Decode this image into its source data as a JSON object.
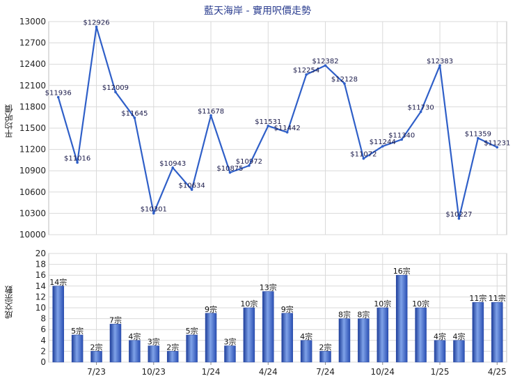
{
  "title": "藍天海岸 - 實用呎價走勢",
  "colors": {
    "line": "#2f5fc8",
    "bar": "#3a64c8",
    "grid": "#d9d9d9",
    "plot_bg": "#ffffff"
  },
  "chart_data": [
    {
      "type": "line",
      "ylabel": "平均呎價",
      "ylim": [
        10000,
        13000
      ],
      "y_ticks": [
        10000,
        10300,
        10600,
        10900,
        11200,
        11500,
        11800,
        12100,
        12400,
        12700,
        13000
      ],
      "x_tick_labels": [
        "7/23",
        "10/23",
        "1/24",
        "4/24",
        "7/24",
        "10/24",
        "1/25",
        "4/25"
      ],
      "x_tick_positions": [
        2.5,
        5.5,
        8.5,
        11.5,
        14.5,
        17.5,
        20.5,
        23.5
      ],
      "series": [
        {
          "values": [
            11936,
            11016,
            12926,
            12009,
            11645,
            10301,
            10943,
            10634,
            11678,
            10875,
            10972,
            11531,
            11442,
            12254,
            12382,
            12128,
            11072,
            11244,
            11340,
            11730,
            12383,
            10227,
            11359,
            11231
          ],
          "labels": [
            "$11936",
            "$11016",
            "$12926",
            "$12009",
            "$11645",
            "$10301",
            "$10943",
            "$10634",
            "$11678",
            "$10875",
            "$10972",
            "$11531",
            "$11442",
            "$12254",
            "$12382",
            "$12128",
            "$11072",
            "$11244",
            "$11340",
            "$11730",
            "$12383",
            "$10227",
            "$11359",
            "$11231"
          ]
        }
      ],
      "grid": true
    },
    {
      "type": "bar",
      "ylabel": "成交宗數",
      "ylim": [
        0,
        20
      ],
      "y_ticks": [
        0,
        2,
        4,
        6,
        8,
        10,
        12,
        14,
        16,
        18,
        20
      ],
      "x_tick_labels": [
        "7/23",
        "10/23",
        "1/24",
        "4/24",
        "7/24",
        "10/24",
        "1/25",
        "4/25"
      ],
      "x_tick_positions": [
        2.5,
        5.5,
        8.5,
        11.5,
        14.5,
        17.5,
        20.5,
        23.5
      ],
      "values": [
        14,
        5,
        2,
        7,
        4,
        3,
        2,
        5,
        9,
        3,
        10,
        13,
        9,
        4,
        2,
        8,
        8,
        10,
        16,
        10,
        4,
        4,
        11,
        11
      ],
      "labels": [
        "14宗",
        "5宗",
        "2宗",
        "7宗",
        "4宗",
        "3宗",
        "2宗",
        "5宗",
        "9宗",
        "3宗",
        "10宗",
        "13宗",
        "9宗",
        "4宗",
        "2宗",
        "8宗",
        "8宗",
        "10宗",
        "16宗",
        "10宗",
        "4宗",
        "4宗",
        "11宗",
        "11宗"
      ],
      "grid": true
    }
  ]
}
